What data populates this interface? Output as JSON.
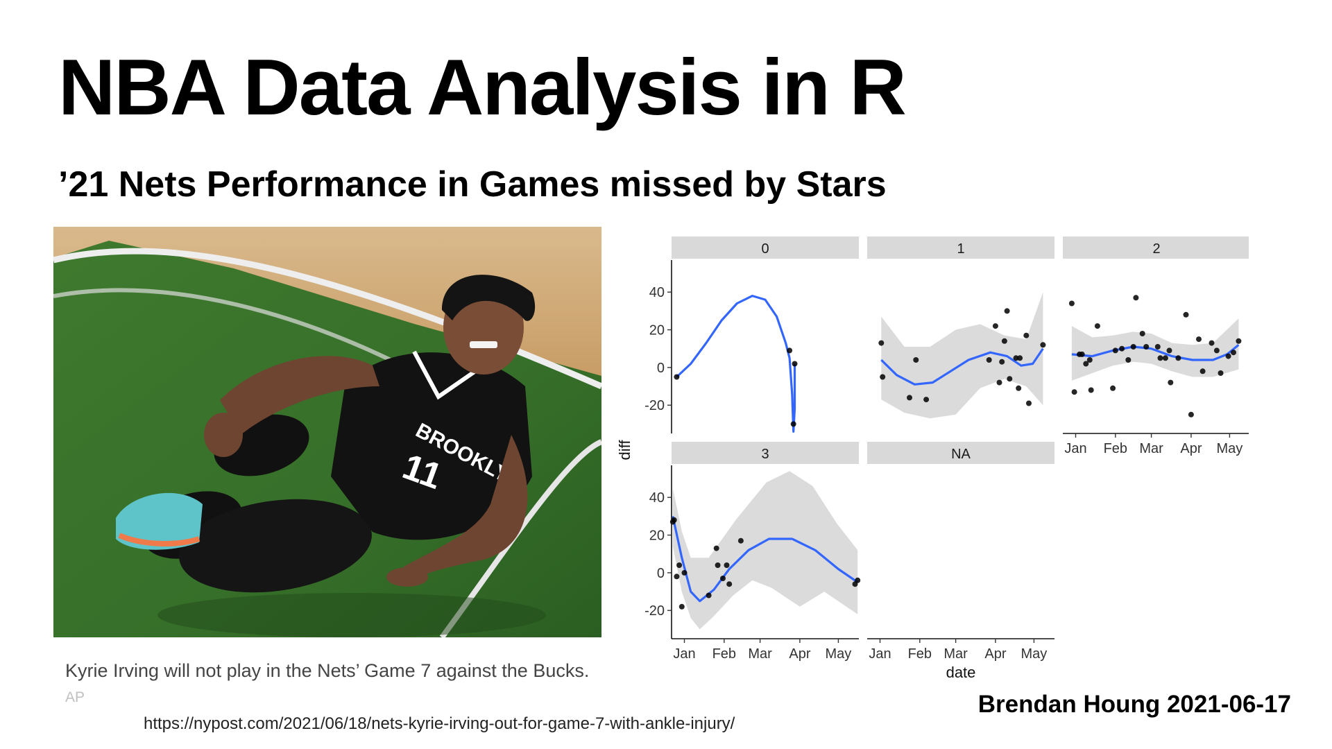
{
  "slide": {
    "title": "NBA Data Analysis in R",
    "subtitle": "’21 Nets Performance in Games missed by Stars",
    "author": "Brendan Houng 2021-06-17"
  },
  "photo": {
    "jersey_text": "BROOKLYN",
    "jersey_number": "11",
    "caption": "Kyrie Irving will not play in the Nets’ Game 7 against the Bucks.",
    "credit": "AP",
    "source_url": "https://nypost.com/2021/06/18/nets-kyrie-irving-out-for-game-7-with-ankle-injury/"
  },
  "chart_data": {
    "type": "scatter",
    "title": "",
    "xlabel": "date",
    "ylabel": "diff",
    "x_ticks": [
      "Jan",
      "Feb",
      "Mar",
      "Apr",
      "May"
    ],
    "x_tick_dates": [
      "2021-01-01",
      "2021-02-01",
      "2021-03-01",
      "2021-04-01",
      "2021-05-01"
    ],
    "xlim": [
      "2020-12-22",
      "2021-05-17"
    ],
    "y_ticks": [
      40,
      20,
      0,
      -20
    ],
    "ylim": [
      -35,
      57
    ],
    "facet_variable_values": [
      "0",
      "1",
      "2",
      "3",
      "NA"
    ],
    "smooth_color": "#3366ff",
    "ribbon_color": "#d9d9d9",
    "point_color": "#000000",
    "strip_color": "#d9d9d9",
    "grid": false,
    "facets": [
      {
        "label": "0",
        "points": [
          [
            "2020-12-26",
            -5
          ],
          [
            "2021-03-24",
            9
          ],
          [
            "2021-03-27",
            -30
          ],
          [
            "2021-03-28",
            2
          ]
        ],
        "smooth": [
          [
            "2020-12-26",
            -5
          ],
          [
            "2021-01-06",
            2
          ],
          [
            "2021-01-18",
            13
          ],
          [
            "2021-01-30",
            25
          ],
          [
            "2021-02-11",
            34
          ],
          [
            "2021-02-23",
            38
          ],
          [
            "2021-03-05",
            36
          ],
          [
            "2021-03-14",
            27
          ],
          [
            "2021-03-21",
            13
          ],
          [
            "2021-03-24",
            5
          ],
          [
            "2021-03-26",
            -14
          ],
          [
            "2021-03-27",
            -34
          ],
          [
            "2021-03-28",
            -22
          ],
          [
            "2021-03-28",
            2
          ]
        ],
        "ribbon": []
      },
      {
        "label": "1",
        "points": [
          [
            "2021-01-02",
            13
          ],
          [
            "2021-01-03",
            -5
          ],
          [
            "2021-01-24",
            -16
          ],
          [
            "2021-01-29",
            4
          ],
          [
            "2021-02-06",
            -17
          ],
          [
            "2021-03-27",
            4
          ],
          [
            "2021-04-01",
            22
          ],
          [
            "2021-04-04",
            -8
          ],
          [
            "2021-04-06",
            3
          ],
          [
            "2021-04-08",
            14
          ],
          [
            "2021-04-10",
            30
          ],
          [
            "2021-04-12",
            -6
          ],
          [
            "2021-04-17",
            5
          ],
          [
            "2021-04-19",
            -11
          ],
          [
            "2021-04-20",
            5
          ],
          [
            "2021-04-25",
            17
          ],
          [
            "2021-04-27",
            -19
          ],
          [
            "2021-05-08",
            12
          ]
        ],
        "smooth": [
          [
            "2021-01-02",
            4
          ],
          [
            "2021-01-14",
            -4
          ],
          [
            "2021-01-28",
            -9
          ],
          [
            "2021-02-11",
            -8
          ],
          [
            "2021-02-25",
            -2
          ],
          [
            "2021-03-11",
            4
          ],
          [
            "2021-03-28",
            8
          ],
          [
            "2021-04-10",
            6
          ],
          [
            "2021-04-21",
            1
          ],
          [
            "2021-04-30",
            2
          ],
          [
            "2021-05-08",
            10
          ]
        ],
        "ribbon": [
          [
            [
              "2021-01-02",
              27
            ],
            [
              "2021-01-20",
              11
            ],
            [
              "2021-02-09",
              11
            ],
            [
              "2021-03-01",
              20
            ],
            [
              "2021-03-20",
              23
            ],
            [
              "2021-04-08",
              17
            ],
            [
              "2021-04-25",
              15
            ],
            [
              "2021-05-08",
              40
            ]
          ],
          [
            [
              "2021-01-02",
              -17
            ],
            [
              "2021-01-20",
              -24
            ],
            [
              "2021-02-09",
              -27
            ],
            [
              "2021-03-01",
              -25
            ],
            [
              "2021-03-20",
              -11
            ],
            [
              "2021-04-08",
              -6
            ],
            [
              "2021-04-25",
              -10
            ],
            [
              "2021-05-08",
              -20
            ]
          ]
        ]
      },
      {
        "label": "2",
        "points": [
          [
            "2020-12-29",
            34
          ],
          [
            "2020-12-31",
            -13
          ],
          [
            "2021-01-04",
            7
          ],
          [
            "2021-01-06",
            7
          ],
          [
            "2021-01-09",
            2
          ],
          [
            "2021-01-12",
            4
          ],
          [
            "2021-01-13",
            -12
          ],
          [
            "2021-01-18",
            22
          ],
          [
            "2021-01-30",
            -11
          ],
          [
            "2021-02-01",
            9
          ],
          [
            "2021-02-06",
            10
          ],
          [
            "2021-02-11",
            4
          ],
          [
            "2021-02-15",
            11
          ],
          [
            "2021-02-17",
            37
          ],
          [
            "2021-02-22",
            18
          ],
          [
            "2021-02-25",
            11
          ],
          [
            "2021-03-06",
            11
          ],
          [
            "2021-03-08",
            5
          ],
          [
            "2021-03-12",
            5
          ],
          [
            "2021-03-15",
            9
          ],
          [
            "2021-03-16",
            -8
          ],
          [
            "2021-03-22",
            5
          ],
          [
            "2021-03-28",
            28
          ],
          [
            "2021-04-01",
            -25
          ],
          [
            "2021-04-07",
            15
          ],
          [
            "2021-04-10",
            -2
          ],
          [
            "2021-04-17",
            13
          ],
          [
            "2021-04-21",
            9
          ],
          [
            "2021-04-24",
            -3
          ],
          [
            "2021-04-30",
            6
          ],
          [
            "2021-05-04",
            8
          ],
          [
            "2021-05-08",
            14
          ]
        ],
        "smooth": [
          [
            "2020-12-29",
            7
          ],
          [
            "2021-01-14",
            6
          ],
          [
            "2021-01-30",
            9
          ],
          [
            "2021-02-15",
            11
          ],
          [
            "2021-03-01",
            10
          ],
          [
            "2021-03-17",
            6
          ],
          [
            "2021-04-02",
            4
          ],
          [
            "2021-04-18",
            4
          ],
          [
            "2021-04-29",
            7
          ],
          [
            "2021-05-08",
            12
          ]
        ],
        "ribbon": [
          [
            [
              "2020-12-29",
              22
            ],
            [
              "2021-01-14",
              16
            ],
            [
              "2021-01-30",
              17
            ],
            [
              "2021-02-15",
              19
            ],
            [
              "2021-03-01",
              18
            ],
            [
              "2021-03-17",
              13
            ],
            [
              "2021-04-02",
              12
            ],
            [
              "2021-04-18",
              13
            ],
            [
              "2021-05-08",
              26
            ]
          ],
          [
            [
              "2020-12-29",
              -7
            ],
            [
              "2021-01-14",
              -3
            ],
            [
              "2021-01-30",
              1
            ],
            [
              "2021-02-15",
              3
            ],
            [
              "2021-03-01",
              2
            ],
            [
              "2021-03-17",
              -2
            ],
            [
              "2021-04-02",
              -5
            ],
            [
              "2021-04-18",
              -5
            ],
            [
              "2021-05-08",
              -1
            ]
          ]
        ]
      },
      {
        "label": "3",
        "points": [
          [
            "2020-12-23",
            27
          ],
          [
            "2020-12-24",
            28
          ],
          [
            "2020-12-26",
            -2
          ],
          [
            "2020-12-28",
            4
          ],
          [
            "2020-12-30",
            -18
          ],
          [
            "2021-01-01",
            0
          ],
          [
            "2021-01-20",
            -12
          ],
          [
            "2021-01-26",
            13
          ],
          [
            "2021-01-27",
            4
          ],
          [
            "2021-01-31",
            -3
          ],
          [
            "2021-02-03",
            4
          ],
          [
            "2021-02-05",
            -6
          ],
          [
            "2021-02-14",
            17
          ],
          [
            "2021-05-14",
            -6
          ],
          [
            "2021-05-16",
            -4
          ]
        ],
        "smooth": [
          [
            "2020-12-23",
            30
          ],
          [
            "2020-12-30",
            8
          ],
          [
            "2021-01-06",
            -10
          ],
          [
            "2021-01-13",
            -15
          ],
          [
            "2021-01-24",
            -9
          ],
          [
            "2021-02-05",
            2
          ],
          [
            "2021-02-20",
            12
          ],
          [
            "2021-03-08",
            18
          ],
          [
            "2021-03-26",
            18
          ],
          [
            "2021-04-13",
            12
          ],
          [
            "2021-05-01",
            2
          ],
          [
            "2021-05-16",
            -5
          ]
        ],
        "ribbon": [
          [
            [
              "2020-12-23",
              45
            ],
            [
              "2020-12-30",
              22
            ],
            [
              "2021-01-06",
              8
            ],
            [
              "2021-01-20",
              8
            ],
            [
              "2021-02-10",
              28
            ],
            [
              "2021-03-06",
              48
            ],
            [
              "2021-03-24",
              54
            ],
            [
              "2021-04-11",
              46
            ],
            [
              "2021-04-30",
              26
            ],
            [
              "2021-05-16",
              12
            ]
          ],
          [
            [
              "2020-12-23",
              14
            ],
            [
              "2020-12-30",
              -10
            ],
            [
              "2021-01-06",
              -24
            ],
            [
              "2021-01-13",
              -30
            ],
            [
              "2021-01-24",
              -23
            ],
            [
              "2021-02-08",
              -12
            ],
            [
              "2021-02-23",
              -4
            ],
            [
              "2021-03-10",
              -8
            ],
            [
              "2021-04-01",
              -18
            ],
            [
              "2021-04-20",
              -10
            ],
            [
              "2021-05-16",
              -22
            ]
          ]
        ]
      },
      {
        "label": "NA",
        "points": [],
        "smooth": [],
        "ribbon": []
      }
    ]
  }
}
